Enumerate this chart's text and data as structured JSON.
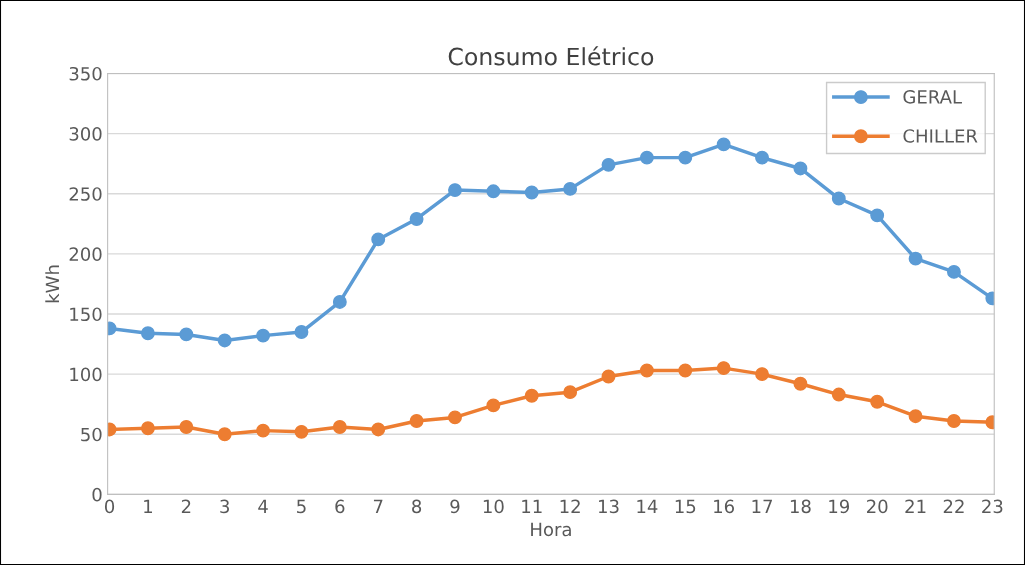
{
  "chart_data": {
    "type": "line",
    "title": "Consumo Elétrico",
    "xlabel": "Hora",
    "ylabel": "kWh",
    "categories": [
      "0",
      "1",
      "2",
      "3",
      "4",
      "5",
      "6",
      "7",
      "8",
      "9",
      "10",
      "11",
      "12",
      "13",
      "14",
      "15",
      "16",
      "17",
      "18",
      "19",
      "20",
      "21",
      "22",
      "23"
    ],
    "series": [
      {
        "name": "GERAL",
        "color": "#5b9bd5",
        "values": [
          138,
          134,
          133,
          128,
          132,
          135,
          160,
          212,
          229,
          253,
          252,
          251,
          254,
          274,
          280,
          280,
          291,
          280,
          271,
          246,
          232,
          196,
          185,
          163
        ]
      },
      {
        "name": "CHILLER",
        "color": "#ed7d31",
        "values": [
          54,
          55,
          56,
          50,
          53,
          52,
          56,
          54,
          61,
          64,
          74,
          82,
          85,
          98,
          103,
          103,
          105,
          100,
          92,
          83,
          77,
          65,
          61,
          60
        ]
      }
    ],
    "ylim": [
      0,
      350
    ],
    "yticks": [
      0,
      50,
      100,
      150,
      200,
      250,
      300,
      350
    ],
    "grid": "y",
    "legend": "top right",
    "marker": "circle",
    "line_style": "solid"
  }
}
